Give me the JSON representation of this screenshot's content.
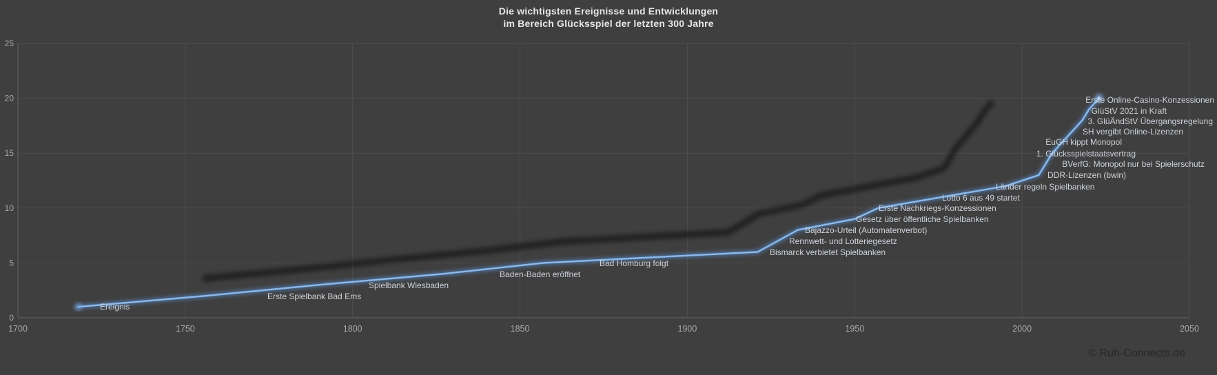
{
  "title": {
    "line1": "Die wichtigsten Ereignisse und Entwicklungen",
    "line2": "im Bereich Glücksspiel der letzten 300 Jahre"
  },
  "copyright": "© Ruh-Connects.de",
  "colors": {
    "background": "#3f3f3f",
    "gridline": "#4d4d4d",
    "axis_line": "#636363",
    "tick_label": "#a9a9a9",
    "data_label": "#ccd2da",
    "title_text": "#e6e6e6",
    "line_core": "#73a9e6",
    "line_highlight": "#b9d7f5",
    "line_glow": "rgba(88,145,214,0.45)",
    "shadow": "rgba(12,12,12,0.5)",
    "copyright_text": "#272727"
  },
  "chart_data": {
    "type": "line",
    "title": "Die wichtigsten Ereignisse und Entwicklungen im Bereich Glücksspiel der letzten 300 Jahre",
    "xlabel": "",
    "ylabel": "",
    "x_axis": {
      "min": 1700,
      "max": 2050,
      "ticks": [
        1700,
        1750,
        1800,
        1850,
        1900,
        1950,
        2000,
        2050
      ]
    },
    "y_axis": {
      "min": 0,
      "max": 25,
      "ticks": [
        0,
        5,
        10,
        15,
        20,
        25
      ]
    },
    "grid": true,
    "legend_position": "none",
    "series_name": "Ereignis",
    "points": [
      {
        "label": "Ereignis",
        "year": 1718,
        "value": 1
      },
      {
        "label": "Erste Spielbank Bad Ems",
        "year": 1756,
        "value": 2
      },
      {
        "label": "Spielbank Wiesbaden",
        "year": 1790,
        "value": 3
      },
      {
        "label": "Baden-Baden eröffnet",
        "year": 1827,
        "value": 4
      },
      {
        "label": "Bad Homburg folgt",
        "year": 1857,
        "value": 5
      },
      {
        "label": "Bismarck verbietet Spielbanken",
        "year": 1921,
        "value": 6
      },
      {
        "label": "Rennwett- und Lotteriegesetz",
        "year": 1927,
        "value": 7
      },
      {
        "label": "Bajazzo-Urteil (Automatenverbot)",
        "year": 1933,
        "value": 8
      },
      {
        "label": "Gesetz über öffentliche Spielbanken",
        "year": 1950,
        "value": 9
      },
      {
        "label": "Erste Nachkriegs-Konzessionen",
        "year": 1957,
        "value": 10
      },
      {
        "label": "Lotto 6 aus 49 startet",
        "year": 1976,
        "value": 11
      },
      {
        "label": "Länder regeln Spielbanken",
        "year": 1995,
        "value": 12
      },
      {
        "label": "DDR-Lizenzen (bwin)",
        "year": 2005,
        "value": 13
      },
      {
        "label": "BVerfG: Monopol nur bei Spielerschutz",
        "year": 2007,
        "value": 14
      },
      {
        "label": "1. Glücksspielstaatsvertrag",
        "year": 2009,
        "value": 15
      },
      {
        "label": "EuGH kippt Monopol",
        "year": 2012,
        "value": 16
      },
      {
        "label": "SH vergibt Online-Lizenzen",
        "year": 2015,
        "value": 17
      },
      {
        "label": "3. GlüÄndStV Übergangsregelung",
        "year": 2018,
        "value": 18
      },
      {
        "label": "GlüStV 2021 in Kraft",
        "year": 2020,
        "value": 19
      },
      {
        "label": "Erste Online-Casino-Konzessionen",
        "year": 2023,
        "value": 20
      }
    ]
  }
}
